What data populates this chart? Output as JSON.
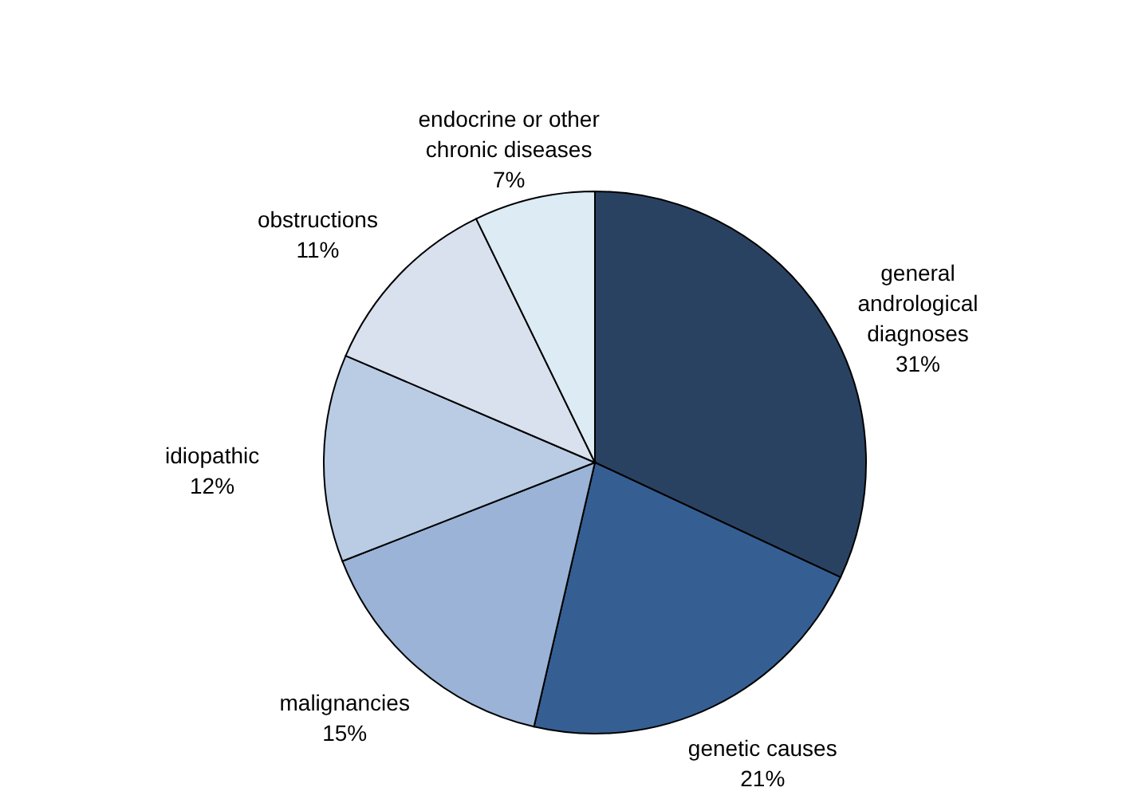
{
  "chart_data": {
    "type": "pie",
    "categories": [
      "general andrological diagnoses",
      "genetic causes",
      "malignancies",
      "idiopathic",
      "obstructions",
      "endocrine or other chronic diseases"
    ],
    "values": [
      31,
      21,
      15,
      12,
      11,
      7
    ],
    "value_labels": [
      "31%",
      "21%",
      "15%",
      "12%",
      "11%",
      "7%"
    ],
    "colors": [
      "#2a4262",
      "#355f93",
      "#9ab3d6",
      "#b9cce4",
      "#d9e1ef",
      "#dcebf4"
    ]
  }
}
